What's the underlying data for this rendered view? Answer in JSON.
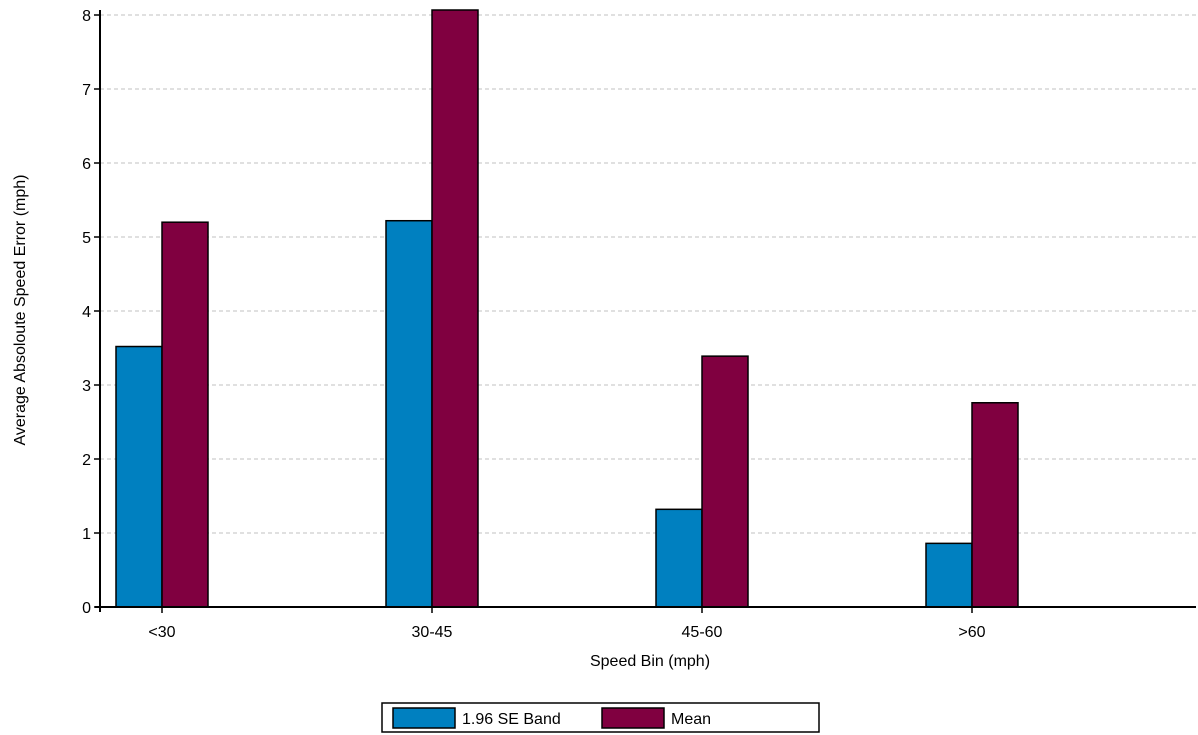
{
  "colors": {
    "band": "#0080c0",
    "mean": "#800040",
    "grid": "#c0c0c0",
    "axis": "#000000"
  },
  "chart_data": {
    "type": "bar",
    "title": "",
    "xlabel": "Speed Bin (mph)",
    "ylabel": "Average Absoloute Speed Error (mph)",
    "categories": [
      "<30",
      "30-45",
      "45-60",
      ">60"
    ],
    "ylim": [
      0,
      8
    ],
    "yticks": [
      0,
      1,
      2,
      3,
      4,
      5,
      6,
      7,
      8
    ],
    "grid": true,
    "legend_position": "bottom",
    "series": [
      {
        "name": "1.96 SE Band",
        "values": [
          3.52,
          5.22,
          1.32,
          0.86
        ]
      },
      {
        "name": "Mean",
        "values": [
          5.2,
          8.1,
          3.39,
          2.76
        ]
      }
    ]
  }
}
